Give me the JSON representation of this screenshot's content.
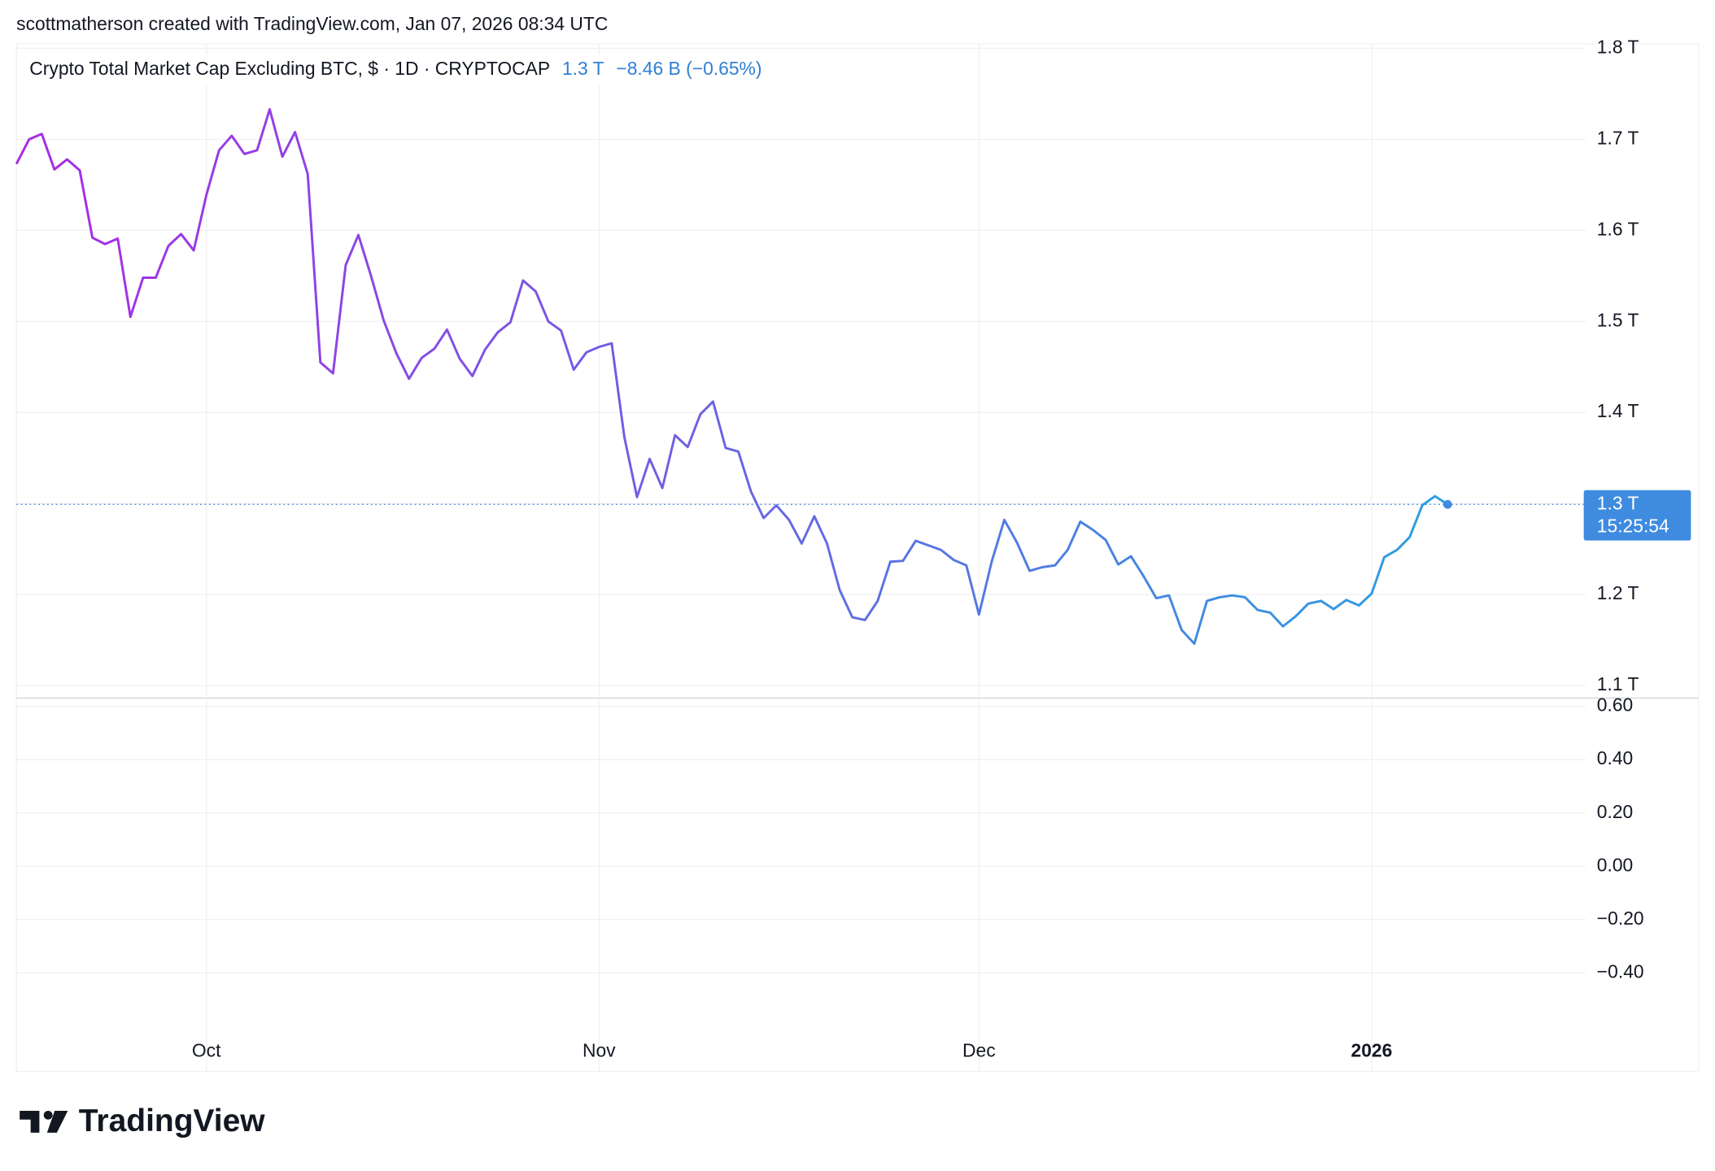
{
  "header": "scottmatherson created with TradingView.com, Jan 07, 2026 08:34 UTC",
  "footer": {
    "brand": "TradingView"
  },
  "chart_data": [
    {
      "type": "line",
      "categories": [
        null,
        null,
        null,
        null,
        null,
        null,
        null,
        null,
        null,
        null,
        null,
        null,
        null,
        null,
        null,
        "Oct",
        null,
        null,
        null,
        null,
        null,
        null,
        null,
        null,
        null,
        null,
        null,
        null,
        null,
        null,
        null,
        null,
        null,
        null,
        null,
        null,
        null,
        null,
        null,
        null,
        null,
        null,
        null,
        null,
        null,
        null,
        "Nov",
        null,
        null,
        null,
        null,
        null,
        null,
        null,
        null,
        null,
        null,
        null,
        null,
        null,
        null,
        null,
        null,
        null,
        null,
        null,
        null,
        null,
        null,
        null,
        null,
        null,
        null,
        null,
        null,
        null,
        "Dec",
        null,
        null,
        null,
        null,
        null,
        null,
        null,
        null,
        null,
        null,
        null,
        null,
        null,
        null,
        null,
        null,
        null,
        null,
        null,
        null,
        null,
        null,
        null,
        null,
        null,
        null,
        null,
        null,
        null,
        null,
        "2026",
        null,
        null,
        null,
        null,
        null,
        null
      ],
      "series": [
        {
          "name": "Crypto Total Market Cap Excluding BTC, $ · 1D · CRYPTOCAP",
          "colors": [
            "#a92ae6",
            "#2b9fe0"
          ],
          "values": [
            1.673,
            1.7,
            1.706,
            1.667,
            1.678,
            1.666,
            1.592,
            1.585,
            1.591,
            1.505,
            1.548,
            1.548,
            1.583,
            1.596,
            1.578,
            1.639,
            1.688,
            1.704,
            1.684,
            1.688,
            1.733,
            1.681,
            1.708,
            1.662,
            1.455,
            1.443,
            1.562,
            1.595,
            1.55,
            1.501,
            1.465,
            1.437,
            1.46,
            1.47,
            1.491,
            1.459,
            1.44,
            1.469,
            1.488,
            1.499,
            1.545,
            1.533,
            1.5,
            1.49,
            1.447,
            1.466,
            1.472,
            1.476,
            1.373,
            1.307,
            1.349,
            1.317,
            1.375,
            1.362,
            1.398,
            1.412,
            1.361,
            1.357,
            1.313,
            1.284,
            1.298,
            1.282,
            1.256,
            1.286,
            1.256,
            1.205,
            1.175,
            1.172,
            1.193,
            1.236,
            1.237,
            1.259,
            1.254,
            1.249,
            1.238,
            1.232,
            1.178,
            1.236,
            1.282,
            1.257,
            1.226,
            1.23,
            1.232,
            1.249,
            1.28,
            1.271,
            1.26,
            1.233,
            1.242,
            1.22,
            1.196,
            1.199,
            1.161,
            1.146,
            1.193,
            1.197,
            1.199,
            1.197,
            1.183,
            1.18,
            1.165,
            1.176,
            1.19,
            1.193,
            1.184,
            1.194,
            1.188,
            1.201,
            1.241,
            1.249,
            1.263,
            1.298,
            1.308,
            1.299
          ]
        }
      ],
      "legend_values": [
        "1.3 T",
        "−8.46 B (−0.65%)"
      ],
      "legend_color": "#2f7fd6",
      "price_tag": {
        "label": "1.3 T",
        "countdown": "15:25:54",
        "color": "#3f8be0"
      },
      "ylim": [
        1.088,
        1.805
      ],
      "yticks": [
        {
          "value": 1.1,
          "label": "1.1 T"
        },
        {
          "value": 1.2,
          "label": "1.2 T"
        },
        {
          "value": 1.3,
          "label": "1.3 T"
        },
        {
          "value": 1.4,
          "label": "1.4 T"
        },
        {
          "value": 1.5,
          "label": "1.5 T"
        },
        {
          "value": 1.6,
          "label": "1.6 T"
        },
        {
          "value": 1.7,
          "label": "1.7 T"
        },
        {
          "value": 1.8,
          "label": "1.8 T"
        }
      ],
      "grid": true
    },
    {
      "type": "line",
      "ylim": [
        -0.77,
        0.625
      ],
      "yticks": [
        {
          "value": -0.4,
          "label": "−0.40"
        },
        {
          "value": -0.2,
          "label": "−0.20"
        },
        {
          "value": 0,
          "label": "0.00"
        },
        {
          "value": 0.2,
          "label": "0.20"
        },
        {
          "value": 0.4,
          "label": "0.40"
        },
        {
          "value": 0.6,
          "label": "0.60"
        }
      ],
      "grid": true
    }
  ]
}
